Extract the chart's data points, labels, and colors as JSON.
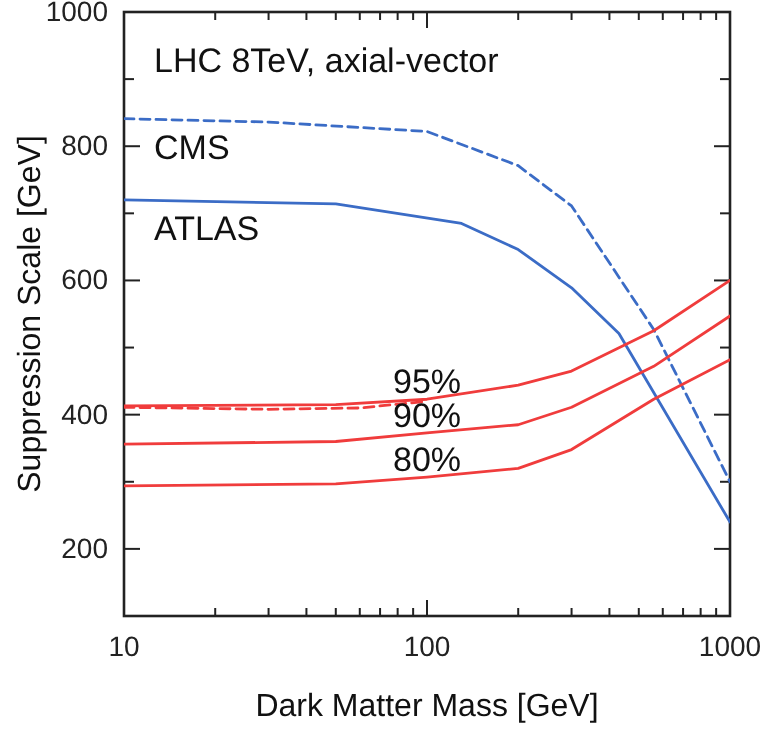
{
  "chart_data": {
    "type": "line",
    "title": "LHC 8TeV, axial-vector",
    "xlabel": "Dark Matter Mass [GeV]",
    "ylabel": "Suppression Scale [GeV]",
    "log": "x",
    "xlim": [
      10,
      1000
    ],
    "ylim": [
      100,
      1000
    ],
    "xticks": [
      10,
      100,
      1000
    ],
    "yticks": [
      {
        "value": 100,
        "label": null
      },
      200,
      {
        "value": 300,
        "label": null
      },
      400,
      {
        "value": 500,
        "label": null
      },
      600,
      {
        "value": 700,
        "label": null
      },
      800,
      {
        "value": 900,
        "label": null
      },
      1000
    ],
    "grid": false,
    "series": [
      {
        "name": "CMS",
        "color": "#3b6cc6",
        "line_style": "dashed",
        "x": [
          10,
          30,
          100,
          200,
          300,
          560,
          1000
        ],
        "values": [
          841,
          836,
          822,
          771,
          711,
          527,
          300
        ]
      },
      {
        "name": "ATLAS",
        "color": "#3b6cc6",
        "line_style": "solid",
        "x": [
          10,
          50,
          130,
          200,
          300,
          430,
          1000
        ],
        "values": [
          720,
          714,
          685,
          646,
          589,
          521,
          240
        ]
      },
      {
        "name": "95%",
        "color": "#f03c3c",
        "line_style": "solid",
        "x": [
          10,
          50,
          100,
          200,
          300,
          560,
          1000
        ],
        "values": [
          413,
          415,
          423,
          444,
          465,
          525,
          600
        ]
      },
      {
        "color": "#f03c3c",
        "line_style": "dashed",
        "x": [
          10,
          30,
          60,
          100
        ],
        "values": [
          411,
          408,
          410,
          420
        ]
      },
      {
        "name": "90%",
        "color": "#f03c3c",
        "line_style": "solid",
        "x": [
          10,
          50,
          100,
          200,
          300,
          560,
          1000
        ],
        "values": [
          356,
          360,
          373,
          385,
          411,
          472,
          547
        ]
      },
      {
        "name": "80%",
        "color": "#f03c3c",
        "line_style": "solid",
        "x": [
          10,
          50,
          100,
          200,
          300,
          560,
          1000
        ],
        "values": [
          294,
          297,
          307,
          320,
          348,
          423,
          482
        ]
      }
    ]
  }
}
